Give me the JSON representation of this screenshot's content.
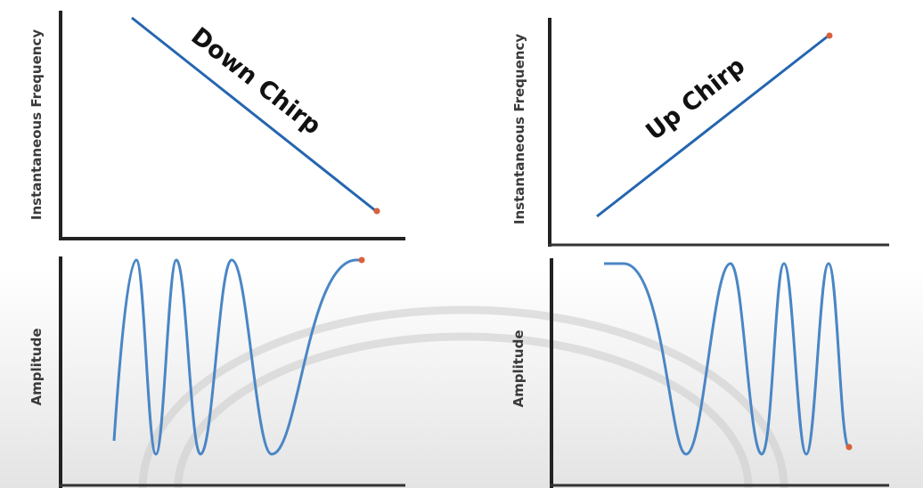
{
  "panels": [
    {
      "freq_label": "Instantaneous Frequency",
      "chirp_label": "Down Chirp",
      "amp_label": "Amplitude"
    },
    {
      "freq_label": "Instantaneous Frequency",
      "chirp_label": "Up Chirp",
      "amp_label": "Amplitude"
    }
  ]
}
